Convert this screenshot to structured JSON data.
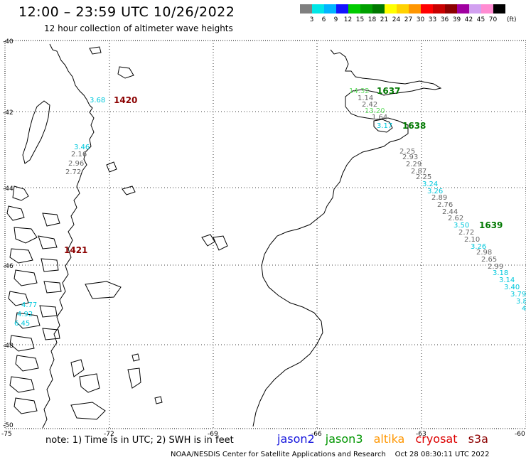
{
  "header": {
    "title": "12:00 – 23:59 UTC 10/26/2022",
    "subtitle": "12 hour collection of altimeter wave heights"
  },
  "scale": {
    "unit": "(ft)",
    "bins": [
      {
        "label": "3",
        "color": "#7f7f7f"
      },
      {
        "label": "6",
        "color": "#00e6e6"
      },
      {
        "label": "9",
        "color": "#00b4ff"
      },
      {
        "label": "12",
        "color": "#1414ff"
      },
      {
        "label": "15",
        "color": "#00cc00"
      },
      {
        "label": "18",
        "color": "#00a000"
      },
      {
        "label": "21",
        "color": "#007800"
      },
      {
        "label": "24",
        "color": "#ffff00"
      },
      {
        "label": "27",
        "color": "#ffd200"
      },
      {
        "label": "30",
        "color": "#ff9600"
      },
      {
        "label": "33",
        "color": "#ff0000"
      },
      {
        "label": "36",
        "color": "#c80000"
      },
      {
        "label": "39",
        "color": "#8c0000"
      },
      {
        "label": "42",
        "color": "#a000a0"
      },
      {
        "label": "45",
        "color": "#d2a0f0"
      },
      {
        "label": "70",
        "color": "#ff8cd2"
      },
      {
        "label": "",
        "color": "#000000"
      }
    ]
  },
  "grid": {
    "lat_labels": [
      "-40",
      "-42",
      "-44",
      "-46",
      "-48",
      "-50"
    ],
    "lon_labels": [
      "-75",
      "-72",
      "-69",
      "-66",
      "-63",
      "-60"
    ]
  },
  "pass_labels": [
    {
      "text": "1420",
      "color": "#8b0000"
    },
    {
      "text": "1421",
      "color": "#8b0000"
    },
    {
      "text": "1637",
      "color": "#007800"
    },
    {
      "text": "1638",
      "color": "#007800"
    },
    {
      "text": "1639",
      "color": "#007800"
    }
  ],
  "observations": [
    {
      "text": "3.68",
      "color": "#00c8dc"
    },
    {
      "text": "14.32",
      "color": "#66dd66"
    },
    {
      "text": "1.14",
      "color": "#666666"
    },
    {
      "text": "2.42",
      "color": "#666666"
    },
    {
      "text": "13.20",
      "color": "#66dd66"
    },
    {
      "text": "1.64",
      "color": "#666666"
    },
    {
      "text": "3.17",
      "color": "#00c8dc"
    },
    {
      "text": "3.46",
      "color": "#00c8dc"
    },
    {
      "text": "2.16",
      "color": "#666666"
    },
    {
      "text": "2.96",
      "color": "#666666"
    },
    {
      "text": "2.72",
      "color": "#666666"
    },
    {
      "text": "2.25",
      "color": "#666666"
    },
    {
      "text": "2.93",
      "color": "#666666"
    },
    {
      "text": "2.29",
      "color": "#666666"
    },
    {
      "text": "2.87",
      "color": "#666666"
    },
    {
      "text": "2.25",
      "color": "#666666"
    },
    {
      "text": "3.24",
      "color": "#00c8dc"
    },
    {
      "text": "3.26",
      "color": "#00c8dc"
    },
    {
      "text": "2.89",
      "color": "#666666"
    },
    {
      "text": "2.76",
      "color": "#666666"
    },
    {
      "text": "2.44",
      "color": "#666666"
    },
    {
      "text": "2.62",
      "color": "#666666"
    },
    {
      "text": "3.50",
      "color": "#00c8dc"
    },
    {
      "text": "2.72",
      "color": "#666666"
    },
    {
      "text": "2.10",
      "color": "#666666"
    },
    {
      "text": "3.26",
      "color": "#00c8dc"
    },
    {
      "text": "2.98",
      "color": "#666666"
    },
    {
      "text": "2.65",
      "color": "#666666"
    },
    {
      "text": "2.99",
      "color": "#666666"
    },
    {
      "text": "3.18",
      "color": "#00c8dc"
    },
    {
      "text": "3.14",
      "color": "#00c8dc"
    },
    {
      "text": "3.40",
      "color": "#00c8dc"
    },
    {
      "text": "3.79",
      "color": "#00c8dc"
    },
    {
      "text": "3.8",
      "color": "#00c8dc"
    },
    {
      "text": "4",
      "color": "#00c8dc"
    },
    {
      "text": "4.77",
      "color": "#00c8dc"
    },
    {
      "text": "4.92",
      "color": "#00c8dc"
    },
    {
      "text": "6.45",
      "color": "#00c8dc"
    }
  ],
  "footer": {
    "note": "note: 1) Time is in UTC; 2) SWH is in feet",
    "satellites": [
      {
        "name": "jason2",
        "color": "#1414dc"
      },
      {
        "name": "jason3",
        "color": "#009600"
      },
      {
        "name": "altika",
        "color": "#ff9600"
      },
      {
        "name": "cryosat",
        "color": "#dc0000"
      },
      {
        "name": "s3a",
        "color": "#8c0000"
      }
    ],
    "credit": "NOAA/NESDIS Center for Satellite Applications and Research",
    "timestamp": "Oct 28 08:30:11 UTC 2022"
  }
}
